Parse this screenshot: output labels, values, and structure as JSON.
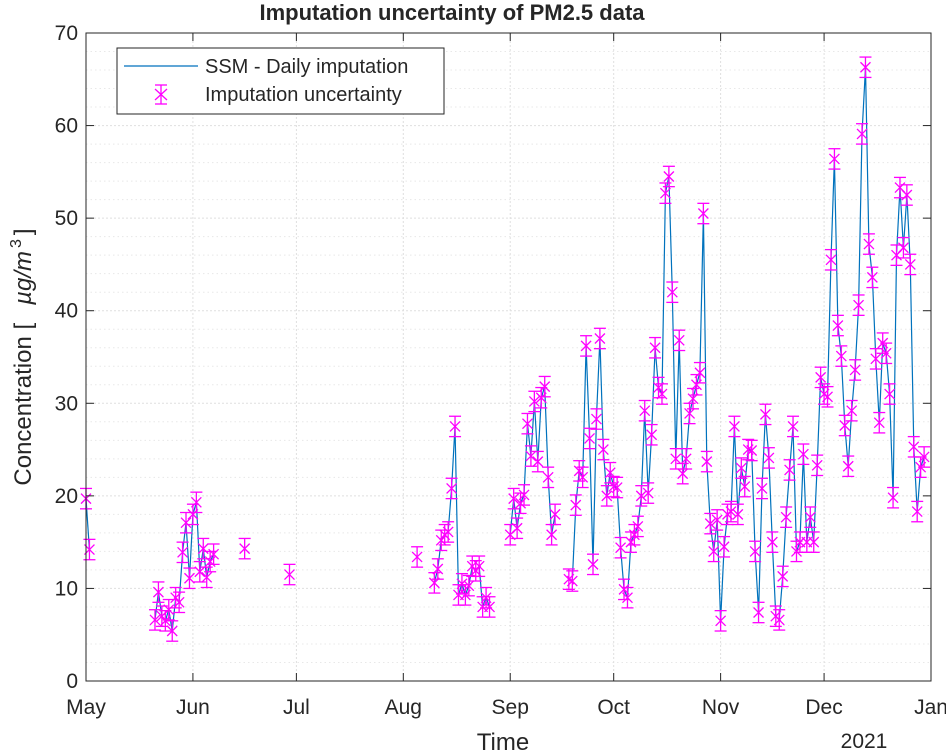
{
  "chart_data": {
    "type": "line",
    "title": "Imputation uncertainty of PM2.5 data",
    "xlabel": "Time",
    "ylabel": "Concentration [ µg/m³ ]",
    "ylabel_prefix": "Concentration [",
    "ylabel_unit": "µg/m",
    "ylabel_exp": "3",
    "ylabel_suffix": "]",
    "year_label": "2021",
    "ylim": [
      0,
      70
    ],
    "yticks": [
      0,
      10,
      20,
      30,
      40,
      50,
      60,
      70
    ],
    "xlim_days": [
      0,
      245
    ],
    "xticks": [
      {
        "label": "May",
        "day": 0
      },
      {
        "label": "Jun",
        "day": 31
      },
      {
        "label": "Jul",
        "day": 61
      },
      {
        "label": "Aug",
        "day": 92
      },
      {
        "label": "Sep",
        "day": 123
      },
      {
        "label": "Oct",
        "day": 153
      },
      {
        "label": "Nov",
        "day": 184
      },
      {
        "label": "Dec",
        "day": 214
      },
      {
        "label": "Jan",
        "day": 245
      }
    ],
    "grid": true,
    "minor_grid": true,
    "legend_position": "top-left",
    "colors": {
      "line": "#0072BD",
      "uncertainty": "#FF00FF",
      "axis": "#262626",
      "grid_major": "#dfdfdf",
      "grid_minor": "#e8e8e8"
    },
    "error_half_width": 1.1,
    "series": [
      {
        "name": "SSM - Daily imputation",
        "segments": [
          [
            [
              0,
              19.7
            ],
            [
              1,
              14.2
            ]
          ],
          [
            [
              20,
              6.6
            ],
            [
              21,
              9.6
            ],
            [
              22,
              7.0
            ],
            [
              23,
              6.5
            ],
            [
              24,
              7.7
            ],
            [
              25,
              5.4
            ],
            [
              26,
              9.0
            ],
            [
              27,
              8.5
            ],
            [
              28,
              13.9
            ],
            [
              29,
              17.1
            ],
            [
              30,
              11.1
            ],
            [
              31,
              18.0
            ],
            [
              32,
              19.3
            ],
            [
              33,
              11.8
            ],
            [
              34,
              14.3
            ],
            [
              35,
              11.2
            ],
            [
              36,
              12.9
            ],
            [
              37,
              13.7
            ]
          ],
          [
            [
              46,
              14.3
            ]
          ],
          [
            [
              59,
              11.5
            ]
          ],
          [
            [
              96,
              13.4
            ]
          ],
          [
            [
              101,
              10.6
            ],
            [
              102,
              12.1
            ],
            [
              103,
              15.2
            ],
            [
              104,
              15.8
            ],
            [
              105,
              16.1
            ],
            [
              106,
              20.8
            ],
            [
              107,
              27.5
            ],
            [
              108,
              9.3
            ],
            [
              109,
              10.5
            ],
            [
              110,
              9.3
            ],
            [
              111,
              10.3
            ],
            [
              112,
              12.4
            ],
            [
              113,
              11.9
            ],
            [
              114,
              12.4
            ],
            [
              115,
              8.0
            ],
            [
              116,
              9.0
            ],
            [
              117,
              8.0
            ]
          ],
          [
            [
              123,
              15.8
            ],
            [
              124,
              19.7
            ],
            [
              125,
              16.5
            ],
            [
              126,
              19.2
            ],
            [
              127,
              20.1
            ],
            [
              128,
              27.8
            ],
            [
              129,
              24.3
            ],
            [
              130,
              30.2
            ],
            [
              131,
              23.7
            ],
            [
              132,
              30.6
            ],
            [
              133,
              31.8
            ],
            [
              134,
              22.0
            ],
            [
              135,
              15.8
            ],
            [
              136,
              18.0
            ]
          ],
          [
            [
              140,
              11.0
            ],
            [
              141,
              10.8
            ],
            [
              142,
              19.0
            ],
            [
              143,
              22.7
            ],
            [
              144,
              22.0
            ],
            [
              145,
              36.2
            ],
            [
              146,
              26.2
            ],
            [
              147,
              12.6
            ],
            [
              148,
              28.3
            ],
            [
              149,
              37.0
            ],
            [
              150,
              25.0
            ],
            [
              151,
              20.0
            ],
            [
              152,
              22.5
            ],
            [
              153,
              21.0
            ],
            [
              154,
              20.9
            ],
            [
              155,
              14.4
            ],
            [
              156,
              9.9
            ],
            [
              157,
              9.0
            ],
            [
              158,
              15.0
            ],
            [
              159,
              15.8
            ],
            [
              160,
              16.7
            ],
            [
              161,
              20.0
            ],
            [
              162,
              29.2
            ],
            [
              163,
              20.3
            ],
            [
              164,
              26.6
            ],
            [
              165,
              36.0
            ],
            [
              166,
              31.7
            ],
            [
              167,
              31.0
            ],
            [
              168,
              52.7
            ],
            [
              169,
              54.5
            ],
            [
              170,
              42.0
            ],
            [
              171,
              24.0
            ],
            [
              172,
              36.8
            ],
            [
              173,
              22.4
            ],
            [
              174,
              24.0
            ],
            [
              175,
              28.9
            ],
            [
              176,
              30.5
            ],
            [
              177,
              32.0
            ],
            [
              178,
              33.3
            ],
            [
              179,
              50.5
            ],
            [
              180,
              23.7
            ],
            [
              181,
              17.0
            ],
            [
              182,
              14.0
            ],
            [
              183,
              17.4
            ],
            [
              184,
              6.5
            ],
            [
              185,
              14.5
            ],
            [
              186,
              18.0
            ],
            [
              187,
              18.3
            ],
            [
              188,
              27.5
            ],
            [
              189,
              18.0
            ],
            [
              190,
              23.0
            ],
            [
              191,
              21.0
            ],
            [
              192,
              25.0
            ],
            [
              193,
              24.9
            ],
            [
              194,
              14.0
            ],
            [
              195,
              7.4
            ],
            [
              196,
              20.8
            ],
            [
              197,
              28.8
            ],
            [
              198,
              24.1
            ],
            [
              199,
              15.0
            ],
            [
              200,
              7.0
            ],
            [
              201,
              6.6
            ],
            [
              202,
              11.3
            ],
            [
              203,
              17.7
            ],
            [
              204,
              22.8
            ],
            [
              205,
              27.5
            ],
            [
              206,
              14.0
            ],
            [
              207,
              15.0
            ],
            [
              208,
              24.5
            ],
            [
              209,
              15.0
            ],
            [
              210,
              17.7
            ],
            [
              211,
              15.0
            ],
            [
              212,
              23.3
            ],
            [
              213,
              32.8
            ],
            [
              214,
              31.0
            ],
            [
              215,
              30.7
            ],
            [
              216,
              45.5
            ],
            [
              217,
              56.4
            ],
            [
              218,
              38.4
            ],
            [
              219,
              35.1
            ],
            [
              220,
              27.6
            ],
            [
              221,
              23.2
            ],
            [
              222,
              29.2
            ],
            [
              223,
              33.6
            ],
            [
              224,
              40.6
            ],
            [
              225,
              59.1
            ],
            [
              226,
              66.3
            ],
            [
              227,
              47.2
            ],
            [
              228,
              43.6
            ],
            [
              229,
              34.8
            ],
            [
              230,
              27.9
            ],
            [
              231,
              36.5
            ],
            [
              232,
              35.4
            ],
            [
              233,
              31.0
            ],
            [
              234,
              19.8
            ],
            [
              235,
              46.0
            ],
            [
              236,
              53.3
            ],
            [
              237,
              46.8
            ],
            [
              238,
              52.5
            ],
            [
              239,
              45.0
            ],
            [
              240,
              25.3
            ],
            [
              241,
              18.3
            ],
            [
              242,
              23.1
            ],
            [
              243,
              24.2
            ]
          ]
        ]
      }
    ]
  }
}
